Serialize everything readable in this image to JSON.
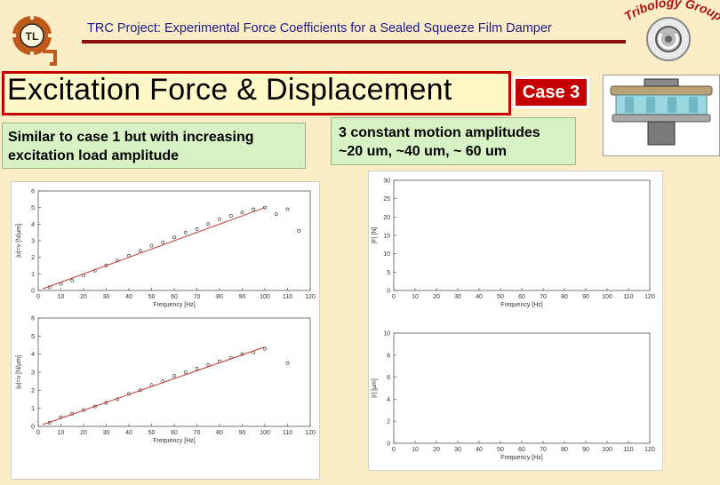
{
  "header": {
    "title": "TRC Project: Experimental Force Coefficients for a Sealed Squeeze Film Damper",
    "logo_left_text": "TL",
    "logo_right_text": "Tribology Group"
  },
  "slide": {
    "title": "Excitation Force & Displacement",
    "case_label": "Case 3",
    "left_note": "Similar to case 1 but with increasing excitation load amplitude",
    "right_note": "3 constant motion amplitudes ~20 um, ~40 um, ~ 60 um"
  },
  "colors": {
    "accent_red": "#c40000",
    "note_green": "#d9f2c5",
    "background": "#fbeec6",
    "header_text": "#1a1a8a"
  },
  "chart_data": [
    {
      "type": "scatter",
      "title": "",
      "xlabel": "Frequency [Hz]",
      "ylabel": "|u|=v [N/µm]",
      "xlim": [
        0,
        120
      ],
      "ylim": [
        0,
        6
      ],
      "x_ticks": [
        0,
        10,
        20,
        30,
        40,
        50,
        60,
        70,
        80,
        90,
        100,
        110,
        120
      ],
      "y_ticks": [
        0,
        1,
        2,
        3,
        4,
        5,
        6
      ],
      "series": [
        {
          "style": "markers",
          "x": [
            5,
            10,
            15,
            20,
            25,
            30,
            35,
            40,
            45,
            50,
            55,
            60,
            65,
            70,
            75,
            80,
            85,
            90,
            95,
            100,
            105,
            110,
            115
          ],
          "y": [
            0.2,
            0.4,
            0.6,
            0.9,
            1.2,
            1.5,
            1.8,
            2.1,
            2.4,
            2.7,
            2.9,
            3.2,
            3.5,
            3.7,
            4.0,
            4.3,
            4.5,
            4.7,
            4.9,
            5.0,
            4.6,
            4.9,
            3.6
          ]
        },
        {
          "style": "line",
          "color": "#c0392b",
          "x": [
            2,
            100
          ],
          "y": [
            0.1,
            5.0
          ]
        }
      ]
    },
    {
      "type": "scatter",
      "title": "",
      "xlabel": "Frequency [Hz]",
      "ylabel": "|u|=v [N/µm]",
      "xlim": [
        0,
        120
      ],
      "ylim": [
        0,
        6
      ],
      "x_ticks": [
        0,
        10,
        20,
        30,
        40,
        50,
        60,
        70,
        80,
        90,
        100,
        110,
        120
      ],
      "y_ticks": [
        0,
        1,
        2,
        3,
        4,
        5,
        6
      ],
      "series": [
        {
          "style": "markers",
          "x": [
            5,
            10,
            15,
            20,
            25,
            30,
            35,
            40,
            45,
            50,
            55,
            60,
            65,
            70,
            75,
            80,
            85,
            90,
            95,
            100,
            110
          ],
          "y": [
            0.2,
            0.5,
            0.7,
            0.9,
            1.1,
            1.3,
            1.5,
            1.8,
            2.0,
            2.3,
            2.5,
            2.8,
            3.0,
            3.2,
            3.4,
            3.6,
            3.8,
            4.0,
            4.1,
            4.3,
            3.5
          ]
        },
        {
          "style": "line",
          "color": "#c0392b",
          "x": [
            2,
            100
          ],
          "y": [
            0.1,
            4.4
          ]
        }
      ]
    },
    {
      "type": "line",
      "title": "",
      "xlabel": "Frequency [Hz]",
      "ylabel": "|F| [N]",
      "xlim": [
        0,
        120
      ],
      "ylim": [
        0,
        30
      ],
      "x_ticks": [
        0,
        10,
        20,
        30,
        40,
        50,
        60,
        70,
        80,
        90,
        100,
        110,
        120
      ],
      "y_ticks": [
        0,
        5,
        10,
        15,
        20,
        25,
        30
      ],
      "series": []
    },
    {
      "type": "line",
      "title": "",
      "xlabel": "Frequency [Hz]",
      "ylabel": "|r| [µm]",
      "xlim": [
        0,
        120
      ],
      "ylim": [
        0,
        10
      ],
      "x_ticks": [
        0,
        10,
        20,
        30,
        40,
        50,
        60,
        70,
        80,
        90,
        100,
        110,
        120
      ],
      "y_ticks": [
        0,
        2,
        4,
        6,
        8,
        10
      ],
      "series": []
    }
  ]
}
